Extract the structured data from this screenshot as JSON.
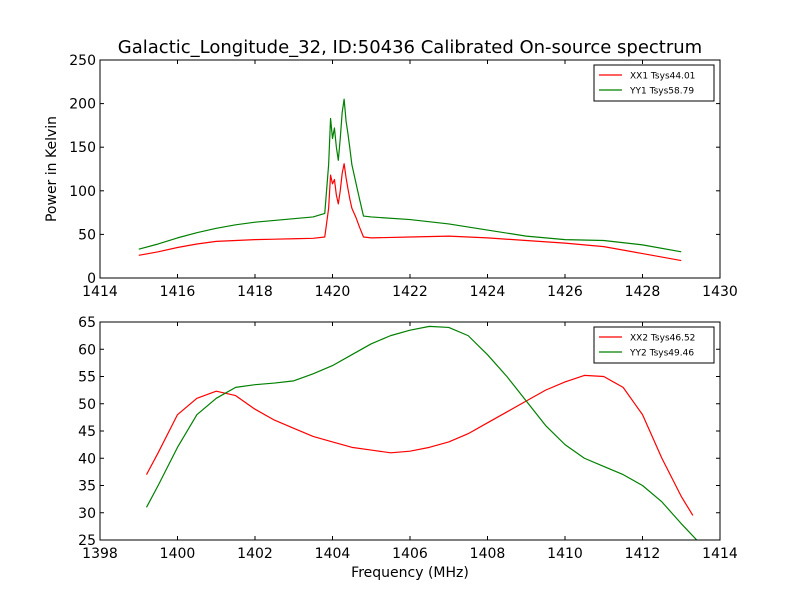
{
  "figure": {
    "title": "Galactic_Longitude_32, ID:50436 Calibrated On-source spectrum"
  },
  "chart_data": [
    {
      "type": "line",
      "title": "Galactic_Longitude_32, ID:50436 Calibrated On-source spectrum",
      "xlabel": "",
      "ylabel": "Power in Kelvin",
      "xlim": [
        1414,
        1430
      ],
      "ylim": [
        0,
        250
      ],
      "xticks": [
        1414,
        1416,
        1418,
        1420,
        1422,
        1424,
        1426,
        1428,
        1430
      ],
      "yticks": [
        0,
        50,
        100,
        150,
        200,
        250
      ],
      "grid": false,
      "legend_position": "top-right",
      "series": [
        {
          "name": "XX1 Tsys44.01",
          "color": "#ff0000",
          "points": [
            [
              1415.0,
              26
            ],
            [
              1415.5,
              30
            ],
            [
              1416.0,
              35
            ],
            [
              1416.5,
              39
            ],
            [
              1417.0,
              42
            ],
            [
              1417.5,
              43
            ],
            [
              1418.0,
              44
            ],
            [
              1418.5,
              44.5
            ],
            [
              1419.0,
              45
            ],
            [
              1419.5,
              45.5
            ],
            [
              1419.8,
              47
            ],
            [
              1419.9,
              80
            ],
            [
              1419.95,
              118
            ],
            [
              1420.0,
              108
            ],
            [
              1420.05,
              113
            ],
            [
              1420.1,
              95
            ],
            [
              1420.15,
              85
            ],
            [
              1420.2,
              100
            ],
            [
              1420.25,
              120
            ],
            [
              1420.3,
              131
            ],
            [
              1420.35,
              115
            ],
            [
              1420.4,
              102
            ],
            [
              1420.45,
              90
            ],
            [
              1420.5,
              80
            ],
            [
              1420.6,
              70
            ],
            [
              1420.7,
              58
            ],
            [
              1420.8,
              47
            ],
            [
              1421.0,
              46
            ],
            [
              1422.0,
              47
            ],
            [
              1423.0,
              48
            ],
            [
              1424.0,
              46
            ],
            [
              1425.0,
              43
            ],
            [
              1426.0,
              40
            ],
            [
              1427.0,
              36
            ],
            [
              1428.0,
              28
            ],
            [
              1429.0,
              20
            ]
          ]
        },
        {
          "name": "YY1 Tsys58.79",
          "color": "#008000",
          "points": [
            [
              1415.0,
              33
            ],
            [
              1415.5,
              39
            ],
            [
              1416.0,
              46
            ],
            [
              1416.5,
              52
            ],
            [
              1417.0,
              57
            ],
            [
              1417.5,
              61
            ],
            [
              1418.0,
              64
            ],
            [
              1418.5,
              66
            ],
            [
              1419.0,
              68
            ],
            [
              1419.5,
              70
            ],
            [
              1419.8,
              74
            ],
            [
              1419.9,
              130
            ],
            [
              1419.95,
              183
            ],
            [
              1420.0,
              160
            ],
            [
              1420.05,
              172
            ],
            [
              1420.1,
              150
            ],
            [
              1420.15,
              135
            ],
            [
              1420.2,
              160
            ],
            [
              1420.25,
              190
            ],
            [
              1420.3,
              205
            ],
            [
              1420.35,
              180
            ],
            [
              1420.4,
              165
            ],
            [
              1420.45,
              148
            ],
            [
              1420.5,
              130
            ],
            [
              1420.6,
              110
            ],
            [
              1420.7,
              90
            ],
            [
              1420.8,
              71
            ],
            [
              1421.0,
              70
            ],
            [
              1422.0,
              67
            ],
            [
              1423.0,
              62
            ],
            [
              1424.0,
              55
            ],
            [
              1425.0,
              48
            ],
            [
              1426.0,
              44
            ],
            [
              1427.0,
              43
            ],
            [
              1428.0,
              38
            ],
            [
              1429.0,
              30
            ]
          ]
        }
      ]
    },
    {
      "type": "line",
      "title": "",
      "xlabel": "Frequency (MHz)",
      "ylabel": "",
      "xlim": [
        1398,
        1414
      ],
      "ylim": [
        25,
        65
      ],
      "xticks": [
        1398,
        1400,
        1402,
        1404,
        1406,
        1408,
        1410,
        1412,
        1414
      ],
      "yticks": [
        25,
        30,
        35,
        40,
        45,
        50,
        55,
        60,
        65
      ],
      "grid": false,
      "legend_position": "top-right",
      "series": [
        {
          "name": "XX2 Tsys46.52",
          "color": "#ff0000",
          "points": [
            [
              1399.2,
              37
            ],
            [
              1399.5,
              41
            ],
            [
              1400.0,
              48
            ],
            [
              1400.5,
              51
            ],
            [
              1401.0,
              52.3
            ],
            [
              1401.5,
              51.5
            ],
            [
              1402.0,
              49
            ],
            [
              1402.5,
              47
            ],
            [
              1403.0,
              45.5
            ],
            [
              1403.5,
              44
            ],
            [
              1404.0,
              43
            ],
            [
              1404.5,
              42
            ],
            [
              1405.0,
              41.5
            ],
            [
              1405.5,
              41
            ],
            [
              1406.0,
              41.3
            ],
            [
              1406.5,
              42
            ],
            [
              1407.0,
              43
            ],
            [
              1407.5,
              44.5
            ],
            [
              1408.0,
              46.5
            ],
            [
              1408.5,
              48.5
            ],
            [
              1409.0,
              50.5
            ],
            [
              1409.5,
              52.5
            ],
            [
              1410.0,
              54
            ],
            [
              1410.5,
              55.2
            ],
            [
              1411.0,
              55
            ],
            [
              1411.5,
              53
            ],
            [
              1412.0,
              48
            ],
            [
              1412.5,
              40
            ],
            [
              1413.0,
              33
            ],
            [
              1413.3,
              29.5
            ]
          ]
        },
        {
          "name": "YY2 Tsys49.46",
          "color": "#008000",
          "points": [
            [
              1399.2,
              31
            ],
            [
              1399.5,
              35
            ],
            [
              1400.0,
              42
            ],
            [
              1400.5,
              48
            ],
            [
              1401.0,
              51
            ],
            [
              1401.5,
              53
            ],
            [
              1402.0,
              53.5
            ],
            [
              1402.5,
              53.8
            ],
            [
              1403.0,
              54.2
            ],
            [
              1403.5,
              55.5
            ],
            [
              1404.0,
              57
            ],
            [
              1404.5,
              59
            ],
            [
              1405.0,
              61
            ],
            [
              1405.5,
              62.5
            ],
            [
              1406.0,
              63.5
            ],
            [
              1406.5,
              64.2
            ],
            [
              1407.0,
              64
            ],
            [
              1407.5,
              62.5
            ],
            [
              1408.0,
              59
            ],
            [
              1408.5,
              55
            ],
            [
              1409.0,
              50.5
            ],
            [
              1409.5,
              46
            ],
            [
              1410.0,
              42.5
            ],
            [
              1410.5,
              40
            ],
            [
              1411.0,
              38.5
            ],
            [
              1411.5,
              37
            ],
            [
              1412.0,
              35
            ],
            [
              1412.5,
              32
            ],
            [
              1413.0,
              28
            ],
            [
              1413.4,
              25
            ]
          ]
        }
      ]
    }
  ]
}
